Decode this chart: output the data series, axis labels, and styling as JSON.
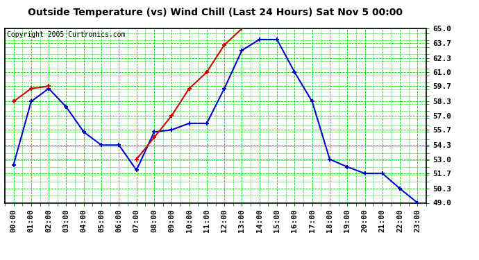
{
  "title": "Outside Temperature (vs) Wind Chill (Last 24 Hours) Sat Nov 5 00:00",
  "copyright": "Copyright 2005 Curtronics.com",
  "x_labels": [
    "00:00",
    "01:00",
    "02:00",
    "03:00",
    "04:00",
    "05:00",
    "06:00",
    "07:00",
    "08:00",
    "09:00",
    "10:00",
    "11:00",
    "12:00",
    "13:00",
    "14:00",
    "15:00",
    "16:00",
    "17:00",
    "18:00",
    "19:00",
    "20:00",
    "21:00",
    "22:00",
    "23:00"
  ],
  "blue_data": [
    52.5,
    58.3,
    59.5,
    57.8,
    55.5,
    54.3,
    54.3,
    52.0,
    55.5,
    55.7,
    56.3,
    56.3,
    59.5,
    63.0,
    64.0,
    64.0,
    61.0,
    58.3,
    53.0,
    52.3,
    51.7,
    51.7,
    50.3,
    49.0
  ],
  "red_data": [
    58.3,
    59.5,
    59.7,
    null,
    null,
    null,
    null,
    53.0,
    55.0,
    57.0,
    59.5,
    61.0,
    63.5,
    65.0,
    null,
    null,
    null,
    null,
    null,
    null,
    null,
    null,
    null,
    null
  ],
  "blue_color": "#0000cc",
  "red_color": "#cc0000",
  "plot_bg": "#ffffff",
  "grid_color": "#00cc00",
  "ylim": [
    49.0,
    65.0
  ],
  "yticks": [
    49.0,
    50.3,
    51.7,
    53.0,
    54.3,
    55.7,
    57.0,
    58.3,
    59.7,
    61.0,
    62.3,
    63.7,
    65.0
  ],
  "title_fontsize": 10,
  "copyright_fontsize": 7,
  "tick_fontsize": 8
}
